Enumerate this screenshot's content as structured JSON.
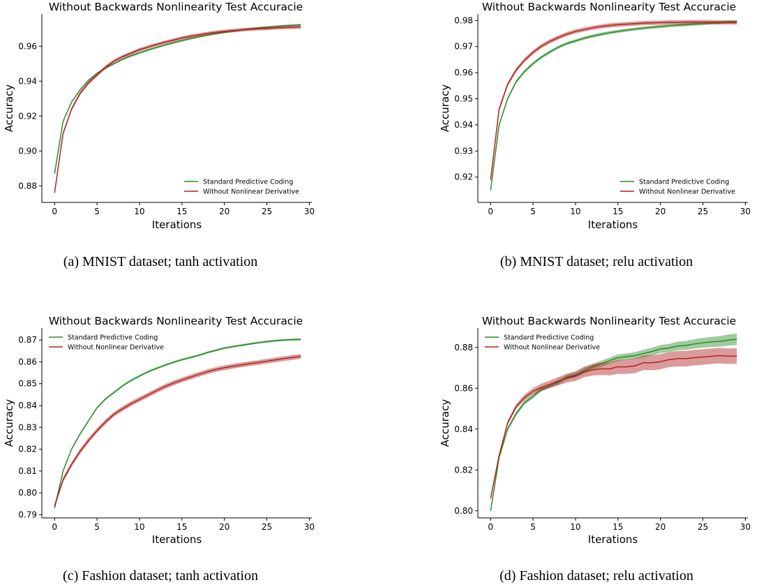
{
  "chart_data": [
    {
      "type": "line",
      "title": "Without Backwards Nonlinearity Test Accuracie",
      "xlabel": "Iterations",
      "ylabel": "Accuracy",
      "caption": "(a) MNIST dataset; tanh activation",
      "xlim": [
        -1.5,
        30.3
      ],
      "ylim": [
        0.8705,
        0.9785
      ],
      "xticks": [
        0,
        5,
        10,
        15,
        20,
        25,
        30
      ],
      "yticks": [
        0.88,
        0.9,
        0.92,
        0.94,
        0.96
      ],
      "ytick_labels": [
        "0.88",
        "0.90",
        "0.92",
        "0.94",
        "0.96"
      ],
      "legend_position": "lower-right",
      "x": [
        0,
        1,
        2,
        3,
        4,
        5,
        6,
        7,
        8,
        9,
        10,
        11,
        12,
        13,
        14,
        15,
        16,
        17,
        18,
        19,
        20,
        21,
        22,
        23,
        24,
        25,
        26,
        27,
        28,
        29
      ],
      "series": [
        {
          "name": "Standard Predictive Coding",
          "color": "#2a8c2a",
          "band": 0.0006,
          "values": [
            0.887,
            0.917,
            0.928,
            0.935,
            0.9405,
            0.9445,
            0.9475,
            0.95,
            0.9525,
            0.9545,
            0.9562,
            0.9578,
            0.9593,
            0.9607,
            0.962,
            0.9632,
            0.9644,
            0.9654,
            0.9664,
            0.9672,
            0.968,
            0.9687,
            0.9693,
            0.9699,
            0.9704,
            0.9709,
            0.9713,
            0.9717,
            0.972,
            0.9723
          ]
        },
        {
          "name": "Without Nonlinear Derivative",
          "color": "#b22222",
          "band": 0.001,
          "values": [
            0.876,
            0.91,
            0.924,
            0.933,
            0.939,
            0.9435,
            0.948,
            0.9515,
            0.954,
            0.956,
            0.958,
            0.9595,
            0.961,
            0.9623,
            0.9635,
            0.9647,
            0.9657,
            0.9665,
            0.9673,
            0.968,
            0.9685,
            0.969,
            0.9694,
            0.9697,
            0.97,
            0.9702,
            0.9705,
            0.9707,
            0.9709,
            0.971
          ]
        }
      ]
    },
    {
      "type": "line",
      "title": "Without Backwards Nonlinearity Test Accuracie",
      "xlabel": "Iterations",
      "ylabel": "Accuracy",
      "caption": "(b) MNIST dataset; relu activation",
      "xlim": [
        -1.5,
        30.3
      ],
      "ylim": [
        0.9103,
        0.9825
      ],
      "xticks": [
        0,
        5,
        10,
        15,
        20,
        25,
        30
      ],
      "yticks": [
        0.92,
        0.93,
        0.94,
        0.95,
        0.96,
        0.97,
        0.98
      ],
      "ytick_labels": [
        "0.92",
        "0.93",
        "0.94",
        "0.95",
        "0.96",
        "0.97",
        "0.98"
      ],
      "legend_position": "lower-right",
      "x": [
        0,
        1,
        2,
        3,
        4,
        5,
        6,
        7,
        8,
        9,
        10,
        11,
        12,
        13,
        14,
        15,
        16,
        17,
        18,
        19,
        20,
        21,
        22,
        23,
        24,
        25,
        26,
        27,
        28,
        29
      ],
      "series": [
        {
          "name": "Standard Predictive Coding",
          "color": "#2a8c2a",
          "band": 0.0006,
          "values": [
            0.915,
            0.94,
            0.95,
            0.9565,
            0.9605,
            0.9635,
            0.966,
            0.968,
            0.9698,
            0.9712,
            0.9722,
            0.9732,
            0.974,
            0.9747,
            0.9753,
            0.9758,
            0.9763,
            0.9767,
            0.9771,
            0.9774,
            0.9777,
            0.978,
            0.9782,
            0.9784,
            0.9786,
            0.9788,
            0.979,
            0.9792,
            0.9794,
            0.9795
          ]
        },
        {
          "name": "Without Nonlinear Derivative",
          "color": "#b22222",
          "band": 0.0008,
          "values": [
            0.919,
            0.946,
            0.9555,
            0.961,
            0.9648,
            0.9678,
            0.9702,
            0.972,
            0.9735,
            0.9748,
            0.9758,
            0.9765,
            0.9772,
            0.9777,
            0.9781,
            0.9784,
            0.9786,
            0.9788,
            0.979,
            0.9791,
            0.9792,
            0.9793,
            0.9793,
            0.9794,
            0.9794,
            0.9794,
            0.9794,
            0.9793,
            0.9793,
            0.9792
          ]
        }
      ]
    },
    {
      "type": "line",
      "title": "Without Backwards Nonlinearity Test Accuracie",
      "xlabel": "Iterations",
      "ylabel": "Accuracy",
      "caption": "(c) Fashion dataset; tanh activation",
      "xlim": [
        -1.5,
        30.3
      ],
      "ylim": [
        0.7885,
        0.8755
      ],
      "xticks": [
        0,
        5,
        10,
        15,
        20,
        25,
        30
      ],
      "yticks": [
        0.79,
        0.8,
        0.81,
        0.82,
        0.83,
        0.84,
        0.85,
        0.86,
        0.87
      ],
      "ytick_labels": [
        "0.79",
        "0.80",
        "0.81",
        "0.82",
        "0.83",
        "0.84",
        "0.85",
        "0.86",
        "0.87"
      ],
      "legend_position": "upper-left",
      "x": [
        0,
        1,
        2,
        3,
        4,
        5,
        6,
        7,
        8,
        9,
        10,
        11,
        12,
        13,
        14,
        15,
        16,
        17,
        18,
        19,
        20,
        21,
        22,
        23,
        24,
        25,
        26,
        27,
        28,
        29
      ],
      "series": [
        {
          "name": "Standard Predictive Coding",
          "color": "#2a8c2a",
          "band": 0.0005,
          "values": [
            0.793,
            0.81,
            0.82,
            0.827,
            0.833,
            0.839,
            0.843,
            0.846,
            0.849,
            0.8515,
            0.8535,
            0.8555,
            0.857,
            0.8585,
            0.8598,
            0.861,
            0.862,
            0.863,
            0.8643,
            0.8653,
            0.8663,
            0.867,
            0.8676,
            0.8682,
            0.8688,
            0.8693,
            0.8697,
            0.87,
            0.8702,
            0.8703
          ]
        },
        {
          "name": "Without Nonlinear Derivative",
          "color": "#b22222",
          "band": 0.0011,
          "values": [
            0.794,
            0.806,
            0.813,
            0.819,
            0.824,
            0.8285,
            0.8325,
            0.836,
            0.8385,
            0.8408,
            0.8428,
            0.8448,
            0.8468,
            0.8487,
            0.8503,
            0.8517,
            0.853,
            0.8543,
            0.8555,
            0.8565,
            0.8573,
            0.858,
            0.8586,
            0.8592,
            0.8597,
            0.8603,
            0.8609,
            0.8615,
            0.862,
            0.8625
          ]
        }
      ]
    },
    {
      "type": "line",
      "title": "Without Backwards Nonlinearity Test Accuracie",
      "xlabel": "Iterations",
      "ylabel": "Accuracy",
      "caption": "(d) Fashion dataset; relu activation",
      "xlim": [
        -1.5,
        30.3
      ],
      "ylim": [
        0.7965,
        0.8895
      ],
      "xticks": [
        0,
        5,
        10,
        15,
        20,
        25,
        30
      ],
      "yticks": [
        0.8,
        0.82,
        0.84,
        0.86,
        0.88
      ],
      "ytick_labels": [
        "0.80",
        "0.82",
        "0.84",
        "0.86",
        "0.88"
      ],
      "legend_position": "upper-left",
      "x": [
        0,
        1,
        2,
        3,
        4,
        5,
        6,
        7,
        8,
        9,
        10,
        11,
        12,
        13,
        14,
        15,
        16,
        17,
        18,
        19,
        20,
        21,
        22,
        23,
        24,
        25,
        26,
        27,
        28,
        29
      ],
      "series": [
        {
          "name": "Standard Predictive Coding",
          "color": "#2a8c2a",
          "band": [
            0.0008,
            0.0008,
            0.001,
            0.001,
            0.001,
            0.001,
            0.001,
            0.001,
            0.0012,
            0.0012,
            0.0012,
            0.0014,
            0.0014,
            0.0015,
            0.0015,
            0.0016,
            0.0016,
            0.0017,
            0.0018,
            0.0019,
            0.002,
            0.002,
            0.0021,
            0.0022,
            0.0023,
            0.0024,
            0.0025,
            0.0026,
            0.0027,
            0.0028
          ],
          "values": [
            0.8,
            0.826,
            0.84,
            0.8475,
            0.853,
            0.856,
            0.8595,
            0.8612,
            0.863,
            0.8655,
            0.8665,
            0.8685,
            0.8705,
            0.872,
            0.8735,
            0.875,
            0.8755,
            0.876,
            0.877,
            0.878,
            0.8792,
            0.8797,
            0.8807,
            0.881,
            0.8817,
            0.8823,
            0.8827,
            0.883,
            0.8836,
            0.884
          ]
        },
        {
          "name": "Without Nonlinear Derivative",
          "color": "#b22222",
          "band": [
            0.0008,
            0.0008,
            0.001,
            0.0012,
            0.0014,
            0.0016,
            0.0018,
            0.0018,
            0.002,
            0.0022,
            0.0024,
            0.0026,
            0.0028,
            0.003,
            0.0032,
            0.0034,
            0.0035,
            0.0036,
            0.0036,
            0.0037,
            0.0037,
            0.0037,
            0.0038,
            0.0038,
            0.0038,
            0.0038,
            0.0038,
            0.0038,
            0.0038,
            0.0038
          ],
          "values": [
            0.806,
            0.827,
            0.843,
            0.851,
            0.8555,
            0.8585,
            0.8605,
            0.862,
            0.8635,
            0.865,
            0.866,
            0.868,
            0.869,
            0.8695,
            0.8695,
            0.8705,
            0.8705,
            0.871,
            0.8725,
            0.8725,
            0.873,
            0.874,
            0.8745,
            0.8745,
            0.875,
            0.8753,
            0.8757,
            0.876,
            0.8757,
            0.8758
          ]
        }
      ]
    }
  ]
}
